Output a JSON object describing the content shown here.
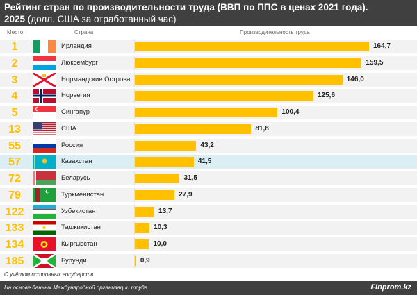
{
  "header": {
    "title_line1": "Рейтинг стран по производительности труда (ВВП по ППС в ценах 2021 года).",
    "year": "2025",
    "title_line2_rest": " (долл. США за отработанный час)"
  },
  "columns": {
    "rank": "Место",
    "country": "Страна",
    "value": "Производительность труда"
  },
  "chart_data": {
    "type": "bar",
    "orientation": "horizontal",
    "title": "Рейтинг стран по производительности труда (ВВП по ППС в ценах 2021 года). 2025 (долл. США за отработанный час)",
    "ylabel": "Производительность труда",
    "bar_color": "#ffc000",
    "highlight_color": "#daeef3",
    "rows": [
      {
        "rank": "1",
        "country": "Ирландия",
        "value": 164.7,
        "label": "164,7",
        "flag": "ireland-flag"
      },
      {
        "rank": "2",
        "country": "Люксембург",
        "value": 159.5,
        "label": "159,5",
        "flag": "luxembourg-flag"
      },
      {
        "rank": "3",
        "country": "Нормандские Острова",
        "value": 146.0,
        "label": "146,0",
        "flag": "jersey-flag"
      },
      {
        "rank": "4",
        "country": "Норвегия",
        "value": 125.6,
        "label": "125,6",
        "flag": "norway-flag"
      },
      {
        "rank": "5",
        "country": "Сингапур",
        "value": 100.4,
        "label": "100,4",
        "flag": "singapore-flag"
      },
      {
        "rank": "13",
        "country": "США",
        "value": 81.8,
        "label": "81,8",
        "flag": "usa-flag"
      },
      {
        "rank": "55",
        "country": "Россия",
        "value": 43.2,
        "label": "43,2",
        "flag": "russia-flag"
      },
      {
        "rank": "57",
        "country": "Казахстан",
        "value": 41.5,
        "label": "41,5",
        "flag": "kazakhstan-flag",
        "highlight": true
      },
      {
        "rank": "72",
        "country": "Беларусь",
        "value": 31.5,
        "label": "31,5",
        "flag": "belarus-flag"
      },
      {
        "rank": "79",
        "country": "Туркменистан",
        "value": 27.9,
        "label": "27,9",
        "flag": "turkmenistan-flag"
      },
      {
        "rank": "122",
        "country": "Узбекистан",
        "value": 13.7,
        "label": "13,7",
        "flag": "uzbekistan-flag"
      },
      {
        "rank": "133",
        "country": "Таджикистан",
        "value": 10.3,
        "label": "10,3",
        "flag": "tajikistan-flag"
      },
      {
        "rank": "134",
        "country": "Кыргызстан",
        "value": 10.0,
        "label": "10,0",
        "flag": "kyrgyzstan-flag"
      },
      {
        "rank": "185",
        "country": "Бурунди",
        "value": 0.9,
        "label": "0,9",
        "flag": "burundi-flag"
      }
    ]
  },
  "note": "С учётом островных государств.",
  "footer": {
    "source": "На основе данных Международной организации труда",
    "logo": "Finprom.kz"
  }
}
